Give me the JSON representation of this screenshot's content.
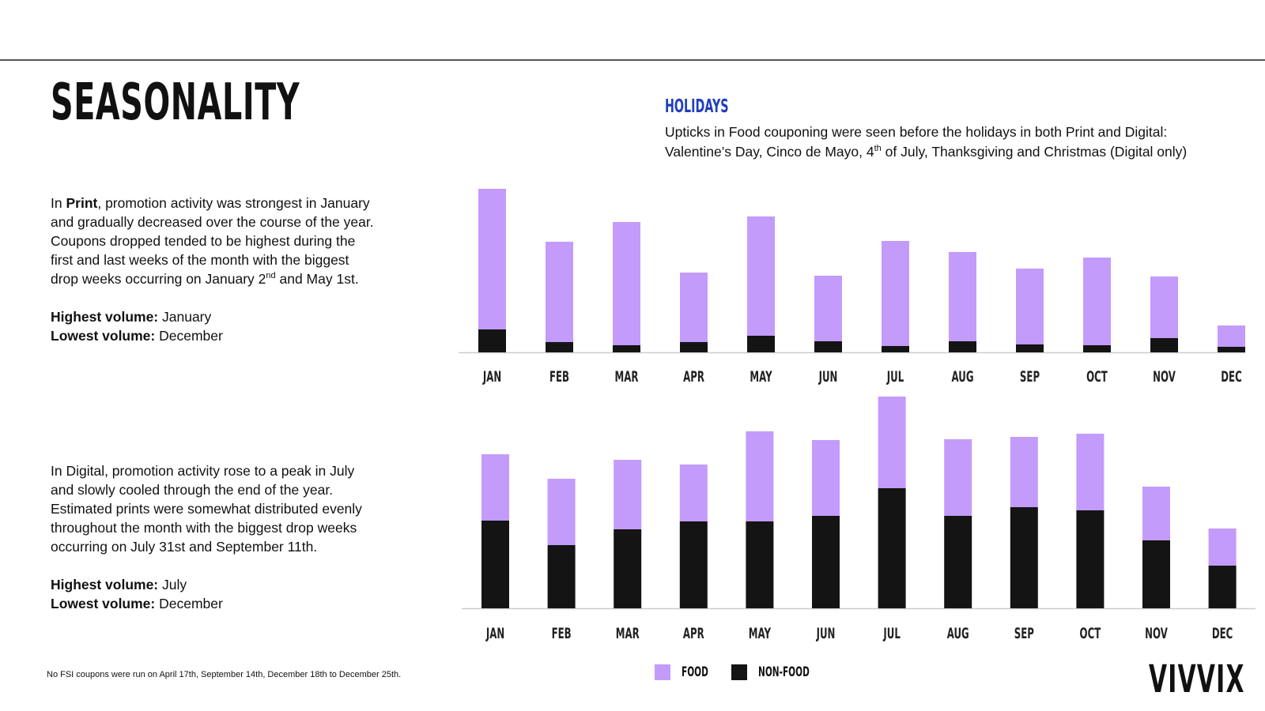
{
  "page": {
    "title": "SEASONALITY",
    "holidays_title": "HOLIDAYS",
    "holidays_line1": "Upticks in Food couponing were seen before the holidays in both Print and Digital:",
    "holidays_line2_a": "Valentine’s Day, Cinco de Mayo, 4",
    "holidays_line2_sup": "th",
    "holidays_line2_b": " of July, Thanksgiving and Christmas (Digital only)",
    "print_para": {
      "l1_a": "In ",
      "l1_bold": "Print",
      "l1_b": ", promotion activity was strongest in January",
      "l2": "and gradually decreased over the course of the year.",
      "l3": "Coupons dropped tended to be highest during the",
      "l4": "first and last weeks of the month with the biggest",
      "l5_a": "drop weeks occurring on January 2",
      "l5_sup": "nd",
      "l5_b": " and May 1st.",
      "highest_label": "Highest volume:",
      "highest_value": " January",
      "lowest_label": "Lowest volume:",
      "lowest_value": " December"
    },
    "digital_para": {
      "l1": "In Digital, promotion activity rose to a peak in July",
      "l2": "and slowly cooled through the end of the year.",
      "l3": "Estimated prints were somewhat distributed evenly",
      "l4": "throughout the month with the biggest drop weeks",
      "l5": "occurring on July 31st and September 11th.",
      "highest_label": "Highest volume:",
      "highest_value": " July",
      "lowest_label": "Lowest volume:",
      "lowest_value": " December"
    },
    "footnote": "No FSI coupons were run on April 17th, September 14th, December 18th to December 25th.",
    "legend": {
      "food": "FOOD",
      "nonfood": "NON-FOOD"
    },
    "logo": "VIVVIX"
  },
  "colors": {
    "food": "#c39bfa",
    "nonfood": "#141414",
    "accent": "#1f3ebf",
    "axis": "#cccccc"
  },
  "chart_data": [
    {
      "type": "bar",
      "stacked": true,
      "categories": [
        "JAN",
        "FEB",
        "MAR",
        "APR",
        "MAY",
        "JUN",
        "JUL",
        "AUG",
        "SEP",
        "OCT",
        "NOV",
        "DEC"
      ],
      "series": [
        {
          "name": "NON-FOOD",
          "values": [
            29,
            13,
            9,
            13,
            21,
            14,
            8,
            14,
            10,
            9,
            18,
            7
          ]
        },
        {
          "name": "FOOD",
          "values": [
            178,
            127,
            156,
            88,
            151,
            83,
            133,
            113,
            96,
            111,
            78,
            27
          ]
        }
      ],
      "legend": "bottom",
      "grid": false
    },
    {
      "type": "bar",
      "stacked": true,
      "categories": [
        "JAN",
        "FEB",
        "MAR",
        "APR",
        "MAY",
        "JUN",
        "JUL",
        "AUG",
        "SEP",
        "OCT",
        "NOV",
        "DEC"
      ],
      "series": [
        {
          "name": "NON-FOOD",
          "values": [
            111,
            80,
            100,
            110,
            110,
            117,
            152,
            117,
            128,
            124,
            86,
            54
          ]
        },
        {
          "name": "FOOD",
          "values": [
            84,
            84,
            88,
            72,
            114,
            96,
            116,
            97,
            89,
            97,
            68,
            47
          ]
        }
      ],
      "legend": "bottom",
      "grid": false
    }
  ]
}
